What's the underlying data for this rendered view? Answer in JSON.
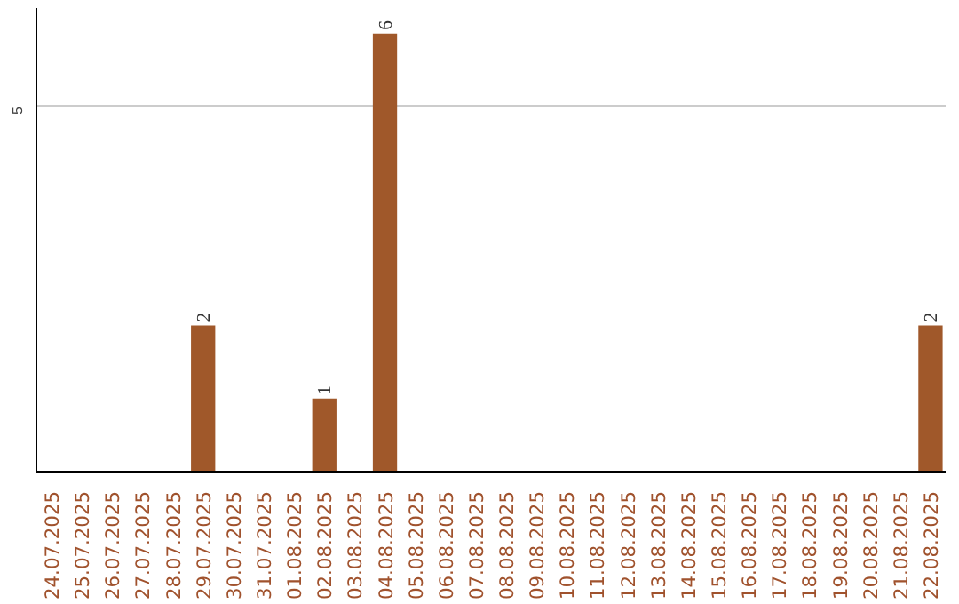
{
  "chart_data": {
    "type": "bar",
    "categories": [
      "24.07.2025",
      "25.07.2025",
      "26.07.2025",
      "27.07.2025",
      "28.07.2025",
      "29.07.2025",
      "30.07.2025",
      "31.07.2025",
      "01.08.2025",
      "02.08.2025",
      "03.08.2025",
      "04.08.2025",
      "05.08.2025",
      "06.08.2025",
      "07.08.2025",
      "08.08.2025",
      "09.08.2025",
      "10.08.2025",
      "11.08.2025",
      "12.08.2025",
      "13.08.2025",
      "14.08.2025",
      "15.08.2025",
      "16.08.2025",
      "17.08.2025",
      "18.08.2025",
      "19.08.2025",
      "20.08.2025",
      "21.08.2025",
      "22.08.2025"
    ],
    "values": [
      0,
      0,
      0,
      0,
      0,
      2,
      0,
      0,
      0,
      1,
      0,
      6,
      0,
      0,
      0,
      0,
      0,
      0,
      0,
      0,
      0,
      0,
      0,
      0,
      0,
      0,
      0,
      0,
      0,
      2
    ],
    "color": "#a0582a",
    "ylim": [
      0,
      6.35
    ],
    "yticks": [
      5
    ],
    "grid": "y",
    "value_labels": [
      null,
      null,
      null,
      null,
      null,
      "2",
      null,
      null,
      null,
      "1",
      null,
      "6",
      null,
      null,
      null,
      null,
      null,
      null,
      null,
      null,
      null,
      null,
      null,
      null,
      null,
      null,
      null,
      null,
      null,
      "2"
    ]
  }
}
